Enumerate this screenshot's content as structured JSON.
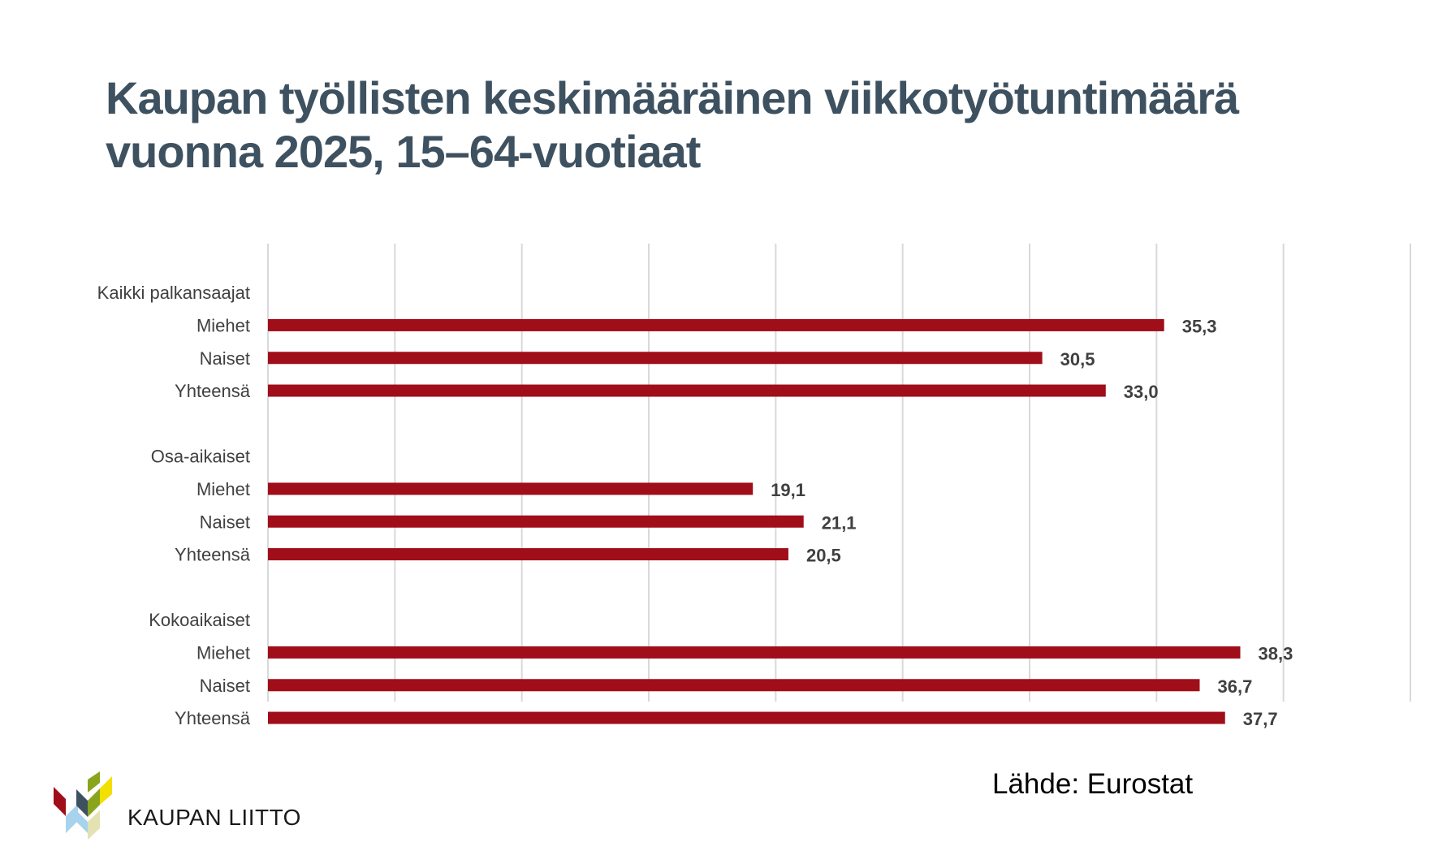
{
  "title_lines": [
    "Kaupan työllisten keskimääräinen viikkotyötuntimäärä",
    "vuonna 2025, 15–64-vuotiaat"
  ],
  "source": "Lähde: Eurostat",
  "logo_text": "KAUPAN LIITTO",
  "colors": {
    "bar": "#a00e1a",
    "title": "#3e5160",
    "grid": "#d9d9d9",
    "logo_red": "#a00e1a",
    "logo_dark": "#3e5160",
    "logo_green": "#8aa51c",
    "logo_yellow": "#f2e000",
    "logo_lightblue": "#a7d3ec",
    "logo_beige": "#e4e1b2"
  },
  "chart_data": {
    "type": "bar",
    "orientation": "horizontal",
    "xlim": [
      0,
      45
    ],
    "x_gridline_step": 5,
    "tick_labels_shown": false,
    "grid": true,
    "legend": "none",
    "rows": [
      {
        "label": "Kaikki palkansaajat",
        "kind": "group"
      },
      {
        "label": "Miehet",
        "value": 35.3,
        "value_label": "35,3"
      },
      {
        "label": "Naiset",
        "value": 30.5,
        "value_label": "30,5"
      },
      {
        "label": "Yhteensä",
        "value": 33.0,
        "value_label": "33,0"
      },
      {
        "label": "",
        "kind": "spacer"
      },
      {
        "label": "Osa-aikaiset",
        "kind": "group"
      },
      {
        "label": "Miehet",
        "value": 19.1,
        "value_label": "19,1"
      },
      {
        "label": "Naiset",
        "value": 21.1,
        "value_label": "21,1"
      },
      {
        "label": "Yhteensä",
        "value": 20.5,
        "value_label": "20,5"
      },
      {
        "label": "",
        "kind": "spacer"
      },
      {
        "label": "Kokoaikaiset",
        "kind": "group"
      },
      {
        "label": "Miehet",
        "value": 38.3,
        "value_label": "38,3"
      },
      {
        "label": "Naiset",
        "value": 36.7,
        "value_label": "36,7"
      },
      {
        "label": "Yhteensä",
        "value": 37.7,
        "value_label": "37,7"
      }
    ]
  }
}
